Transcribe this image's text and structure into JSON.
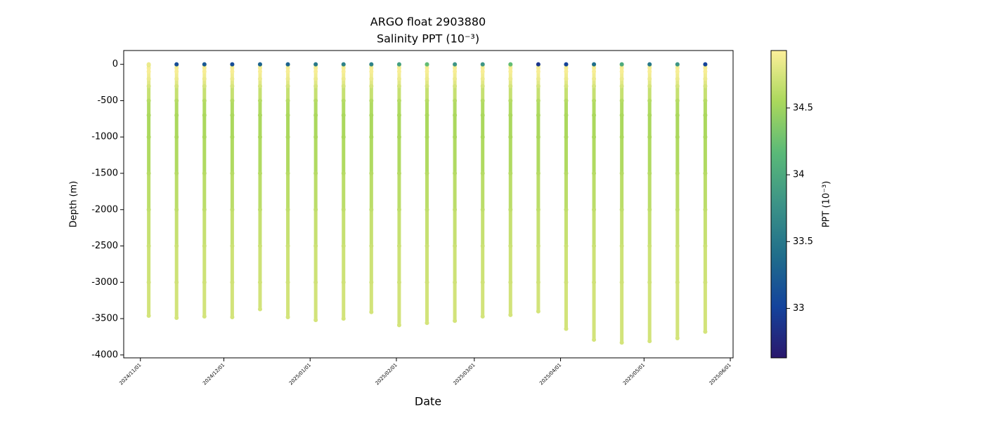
{
  "chart_data": {
    "type": "profile-scatter",
    "title": "ARGO float 2903880",
    "subtitle": "Salinity PPT (10⁻³)",
    "x_label": "Date",
    "y_label": "Depth (m)",
    "colorbar_label": "PPT (10⁻³)",
    "colormap": [
      "#2a186c",
      "#14439c",
      "#206e8b",
      "#3c9387",
      "#5ab978",
      "#aad85c",
      "#fdef9a"
    ],
    "clim": [
      32.63,
      34.93
    ],
    "cticks": [
      33.0,
      33.5,
      34.0,
      34.5
    ],
    "xlim": [
      "2024-10-26",
      "2025-06-02"
    ],
    "xticks": [
      {
        "value": "2024-11-01",
        "label": "2024/11/01"
      },
      {
        "value": "2024-12-01",
        "label": "2024/12/01"
      },
      {
        "value": "2025-01-01",
        "label": "2025/01/01"
      },
      {
        "value": "2025-02-01",
        "label": "2025/02/01"
      },
      {
        "value": "2025-03-01",
        "label": "2025/03/01"
      },
      {
        "value": "2025-04-01",
        "label": "2025/04/01"
      },
      {
        "value": "2025-05-01",
        "label": "2025/05/01"
      },
      {
        "value": "2025-06-01",
        "label": "2025/06/01"
      }
    ],
    "ylim": [
      -4040,
      190
    ],
    "yticks": [
      0,
      -500,
      -1000,
      -1500,
      -2000,
      -2500,
      -3000,
      -3500,
      -4000
    ],
    "profiles": [
      {
        "date": "2024-11-04",
        "depth": [
          0,
          -10,
          -50,
          -100,
          -200,
          -300,
          -500,
          -700,
          -1000,
          -1500,
          -2000,
          -2500,
          -3000,
          -3460
        ],
        "salinity": [
          34.85,
          34.8,
          34.9,
          34.9,
          34.85,
          34.75,
          34.6,
          34.55,
          34.55,
          34.6,
          34.65,
          34.7,
          34.72,
          34.74
        ]
      },
      {
        "date": "2024-11-14",
        "depth": [
          0,
          -10,
          -50,
          -100,
          -200,
          -300,
          -500,
          -700,
          -1000,
          -1500,
          -2000,
          -2500,
          -3000,
          -3490
        ],
        "salinity": [
          33.1,
          34.8,
          34.9,
          34.9,
          34.85,
          34.75,
          34.6,
          34.55,
          34.55,
          34.6,
          34.65,
          34.7,
          34.72,
          34.74
        ]
      },
      {
        "date": "2024-11-24",
        "depth": [
          0,
          -10,
          -50,
          -100,
          -200,
          -300,
          -500,
          -700,
          -1000,
          -1500,
          -2000,
          -2500,
          -3000,
          -3470
        ],
        "salinity": [
          33.2,
          34.8,
          34.9,
          34.9,
          34.85,
          34.75,
          34.6,
          34.55,
          34.55,
          34.6,
          34.65,
          34.7,
          34.72,
          34.74
        ]
      },
      {
        "date": "2024-12-04",
        "depth": [
          0,
          -10,
          -50,
          -100,
          -200,
          -300,
          -500,
          -700,
          -1000,
          -1500,
          -2000,
          -2500,
          -3000,
          -3480
        ],
        "salinity": [
          33.1,
          34.8,
          34.9,
          34.9,
          34.85,
          34.75,
          34.6,
          34.55,
          34.55,
          34.6,
          34.65,
          34.7,
          34.72,
          34.74
        ]
      },
      {
        "date": "2024-12-14",
        "depth": [
          0,
          -10,
          -50,
          -100,
          -200,
          -300,
          -500,
          -700,
          -1000,
          -1500,
          -2000,
          -2500,
          -3000,
          -3370
        ],
        "salinity": [
          33.3,
          34.8,
          34.9,
          34.9,
          34.85,
          34.75,
          34.6,
          34.55,
          34.55,
          34.6,
          34.65,
          34.7,
          34.72,
          34.74
        ]
      },
      {
        "date": "2024-12-24",
        "depth": [
          0,
          -10,
          -50,
          -100,
          -200,
          -300,
          -500,
          -700,
          -1000,
          -1500,
          -2000,
          -2500,
          -3000,
          -3480
        ],
        "salinity": [
          33.3,
          34.8,
          34.9,
          34.9,
          34.85,
          34.75,
          34.6,
          34.55,
          34.55,
          34.6,
          34.65,
          34.7,
          34.72,
          34.74
        ]
      },
      {
        "date": "2025-01-03",
        "depth": [
          0,
          -10,
          -50,
          -100,
          -200,
          -300,
          -500,
          -700,
          -1000,
          -1500,
          -2000,
          -2500,
          -3000,
          -3520
        ],
        "salinity": [
          33.5,
          34.8,
          34.9,
          34.9,
          34.85,
          34.75,
          34.6,
          34.55,
          34.55,
          34.6,
          34.65,
          34.7,
          34.72,
          34.74
        ]
      },
      {
        "date": "2025-01-13",
        "depth": [
          0,
          -10,
          -50,
          -100,
          -200,
          -300,
          -500,
          -700,
          -1000,
          -1500,
          -2000,
          -2500,
          -3000,
          -3500
        ],
        "salinity": [
          33.6,
          34.8,
          34.9,
          34.9,
          34.85,
          34.75,
          34.6,
          34.55,
          34.55,
          34.6,
          34.65,
          34.7,
          34.72,
          34.74
        ]
      },
      {
        "date": "2025-01-23",
        "depth": [
          0,
          -10,
          -50,
          -100,
          -200,
          -300,
          -500,
          -700,
          -1000,
          -1500,
          -2000,
          -2500,
          -3000,
          -3410
        ],
        "salinity": [
          33.6,
          34.8,
          34.9,
          34.9,
          34.85,
          34.75,
          34.6,
          34.55,
          34.55,
          34.6,
          34.65,
          34.7,
          34.72,
          34.74
        ]
      },
      {
        "date": "2025-02-02",
        "depth": [
          0,
          -10,
          -50,
          -100,
          -200,
          -300,
          -500,
          -700,
          -1000,
          -1500,
          -2000,
          -2500,
          -3000,
          -3590
        ],
        "salinity": [
          33.9,
          34.8,
          34.9,
          34.9,
          34.85,
          34.75,
          34.6,
          34.55,
          34.55,
          34.6,
          34.65,
          34.7,
          34.72,
          34.74
        ]
      },
      {
        "date": "2025-02-12",
        "depth": [
          0,
          -10,
          -50,
          -100,
          -200,
          -300,
          -500,
          -700,
          -1000,
          -1500,
          -2000,
          -2500,
          -3000,
          -3560
        ],
        "salinity": [
          34.2,
          34.8,
          34.9,
          34.9,
          34.85,
          34.75,
          34.6,
          34.55,
          34.55,
          34.6,
          34.65,
          34.7,
          34.72,
          34.74
        ]
      },
      {
        "date": "2025-02-22",
        "depth": [
          0,
          -10,
          -50,
          -100,
          -200,
          -300,
          -500,
          -700,
          -1000,
          -1500,
          -2000,
          -2500,
          -3000,
          -3530
        ],
        "salinity": [
          33.8,
          34.8,
          34.9,
          34.9,
          34.85,
          34.75,
          34.6,
          34.55,
          34.55,
          34.6,
          34.65,
          34.7,
          34.72,
          34.74
        ]
      },
      {
        "date": "2025-03-04",
        "depth": [
          0,
          -10,
          -50,
          -100,
          -200,
          -300,
          -500,
          -700,
          -1000,
          -1500,
          -2000,
          -2500,
          -3000,
          -3470
        ],
        "salinity": [
          33.8,
          34.8,
          34.9,
          34.9,
          34.85,
          34.75,
          34.6,
          34.55,
          34.55,
          34.6,
          34.65,
          34.7,
          34.72,
          34.74
        ]
      },
      {
        "date": "2025-03-14",
        "depth": [
          0,
          -10,
          -50,
          -100,
          -200,
          -300,
          -500,
          -700,
          -1000,
          -1500,
          -2000,
          -2500,
          -3000,
          -3450
        ],
        "salinity": [
          34.2,
          34.8,
          34.9,
          34.9,
          34.85,
          34.75,
          34.6,
          34.55,
          34.55,
          34.6,
          34.65,
          34.7,
          34.72,
          34.74
        ]
      },
      {
        "date": "2025-03-24",
        "depth": [
          0,
          -10,
          -50,
          -100,
          -200,
          -300,
          -500,
          -700,
          -1000,
          -1500,
          -2000,
          -2500,
          -3000,
          -3400
        ],
        "salinity": [
          32.9,
          34.8,
          34.9,
          34.9,
          34.85,
          34.75,
          34.6,
          34.55,
          34.55,
          34.6,
          34.65,
          34.7,
          34.72,
          34.74
        ]
      },
      {
        "date": "2025-04-03",
        "depth": [
          0,
          -10,
          -50,
          -100,
          -200,
          -300,
          -500,
          -700,
          -1000,
          -1500,
          -2000,
          -2500,
          -3000,
          -3640
        ],
        "salinity": [
          33.0,
          34.8,
          34.9,
          34.9,
          34.85,
          34.75,
          34.6,
          34.55,
          34.55,
          34.6,
          34.65,
          34.7,
          34.72,
          34.74
        ]
      },
      {
        "date": "2025-04-13",
        "depth": [
          0,
          -10,
          -50,
          -100,
          -200,
          -300,
          -500,
          -700,
          -1000,
          -1500,
          -2000,
          -2500,
          -3000,
          -3790
        ],
        "salinity": [
          33.4,
          34.8,
          34.9,
          34.9,
          34.85,
          34.75,
          34.6,
          34.55,
          34.55,
          34.6,
          34.65,
          34.7,
          34.72,
          34.74
        ]
      },
      {
        "date": "2025-04-23",
        "depth": [
          0,
          -10,
          -50,
          -100,
          -200,
          -300,
          -500,
          -700,
          -1000,
          -1500,
          -2000,
          -2500,
          -3000,
          -3830
        ],
        "salinity": [
          34.0,
          34.8,
          34.9,
          34.9,
          34.85,
          34.75,
          34.6,
          34.55,
          34.55,
          34.6,
          34.65,
          34.7,
          34.72,
          34.74
        ]
      },
      {
        "date": "2025-05-03",
        "depth": [
          0,
          -10,
          -50,
          -100,
          -200,
          -300,
          -500,
          -700,
          -1000,
          -1500,
          -2000,
          -2500,
          -3000,
          -3810
        ],
        "salinity": [
          33.5,
          34.8,
          34.9,
          34.9,
          34.85,
          34.75,
          34.6,
          34.55,
          34.55,
          34.6,
          34.65,
          34.7,
          34.72,
          34.74
        ]
      },
      {
        "date": "2025-05-13",
        "depth": [
          0,
          -10,
          -50,
          -100,
          -200,
          -300,
          -500,
          -700,
          -1000,
          -1500,
          -2000,
          -2500,
          -3000,
          -3770
        ],
        "salinity": [
          33.8,
          34.8,
          34.9,
          34.9,
          34.85,
          34.75,
          34.6,
          34.55,
          34.55,
          34.6,
          34.65,
          34.7,
          34.72,
          34.74
        ]
      },
      {
        "date": "2025-05-23",
        "depth": [
          0,
          -10,
          -50,
          -100,
          -200,
          -300,
          -500,
          -700,
          -1000,
          -1500,
          -2000,
          -2500,
          -3000,
          -3680
        ],
        "salinity": [
          33.0,
          34.8,
          34.9,
          34.9,
          34.85,
          34.75,
          34.6,
          34.55,
          34.55,
          34.6,
          34.65,
          34.7,
          34.72,
          34.74
        ]
      }
    ]
  }
}
